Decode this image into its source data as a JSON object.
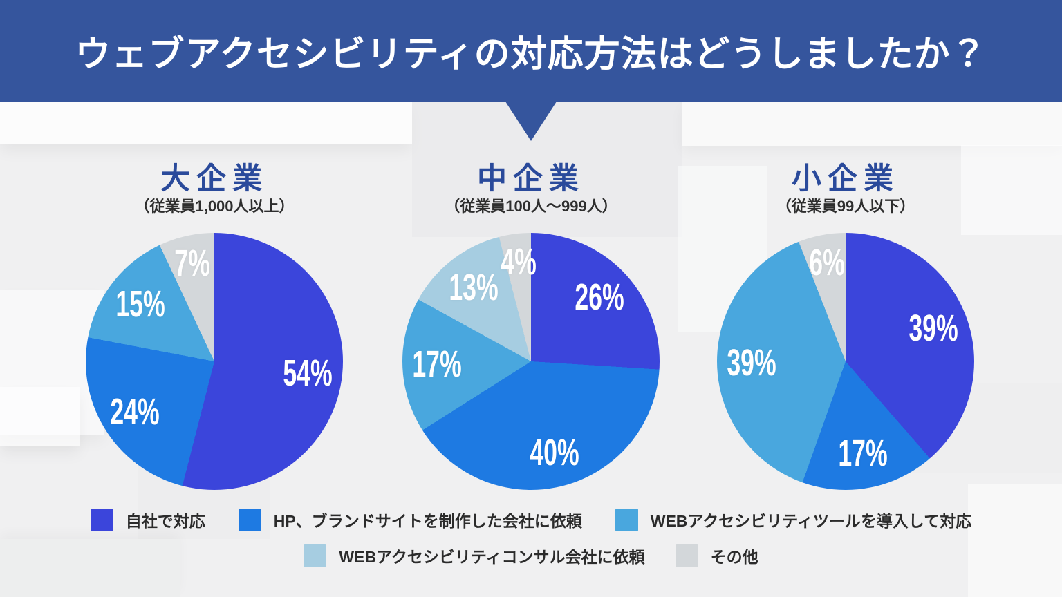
{
  "banner": {
    "title": "ウェブアクセシビリティの対応方法はどうしましたか？"
  },
  "palette": {
    "self": "#3B45DB",
    "agency": "#1E7AE2",
    "tool": "#49A7DE",
    "consultant": "#A6CDE1",
    "other": "#D3D7DA",
    "banner_bg": "#35559D",
    "banner_text": "#FFFFFF",
    "heading_text": "#2A4A9B",
    "subtitle_text": "#2E2E2E",
    "slice_label_text": "#FFFFFF",
    "legend_text": "#2B2B2B",
    "page_bg": "#F0F0F1"
  },
  "chart_data": [
    {
      "type": "pie",
      "title": "大企業",
      "subtitle": "（従業員1,000人以上）",
      "unit": "%",
      "direction": "clockwise",
      "start_angle_deg": 0,
      "legend_position": "bottom",
      "slices": [
        {
          "label": "自社で対応",
          "value": 54,
          "color_key": "self"
        },
        {
          "label": "HP、ブランドサイトを制作した会社に依頼",
          "value": 24,
          "color_key": "agency"
        },
        {
          "label": "WEBアクセシビリティツールを導入して対応",
          "value": 15,
          "color_key": "tool"
        },
        {
          "label": "その他",
          "value": 7,
          "color_key": "other"
        }
      ]
    },
    {
      "type": "pie",
      "title": "中企業",
      "subtitle": "（従業員100人～999人）",
      "unit": "%",
      "direction": "clockwise",
      "start_angle_deg": 0,
      "legend_position": "bottom",
      "slices": [
        {
          "label": "自社で対応",
          "value": 26,
          "color_key": "self"
        },
        {
          "label": "HP、ブランドサイトを制作した会社に依頼",
          "value": 40,
          "color_key": "agency"
        },
        {
          "label": "WEBアクセシビリティツールを導入して対応",
          "value": 17,
          "color_key": "tool"
        },
        {
          "label": "WEBアクセシビリティコンサル会社に依頼",
          "value": 13,
          "color_key": "consultant"
        },
        {
          "label": "その他",
          "value": 4,
          "color_key": "other"
        }
      ]
    },
    {
      "type": "pie",
      "title": "小企業",
      "subtitle": "（従業員99人以下）",
      "unit": "%",
      "direction": "clockwise",
      "start_angle_deg": 0,
      "legend_position": "bottom",
      "slices": [
        {
          "label": "自社で対応",
          "value": 39,
          "color_key": "self"
        },
        {
          "label": "HP、ブランドサイトを制作した会社に依頼",
          "value": 17,
          "color_key": "agency"
        },
        {
          "label": "WEBアクセシビリティツールを導入して対応",
          "value": 39,
          "color_key": "tool"
        },
        {
          "label": "その他",
          "value": 6,
          "color_key": "other"
        }
      ]
    }
  ],
  "legend": {
    "rows": [
      [
        {
          "label": "自社で対応",
          "color_key": "self"
        },
        {
          "label": "HP、ブランドサイトを制作した会社に依頼",
          "color_key": "agency"
        },
        {
          "label": "WEBアクセシビリティツールを導入して対応",
          "color_key": "tool"
        }
      ],
      [
        {
          "label": "WEBアクセシビリティコンサル会社に依頼",
          "color_key": "consultant"
        },
        {
          "label": "その他",
          "color_key": "other"
        }
      ]
    ]
  }
}
